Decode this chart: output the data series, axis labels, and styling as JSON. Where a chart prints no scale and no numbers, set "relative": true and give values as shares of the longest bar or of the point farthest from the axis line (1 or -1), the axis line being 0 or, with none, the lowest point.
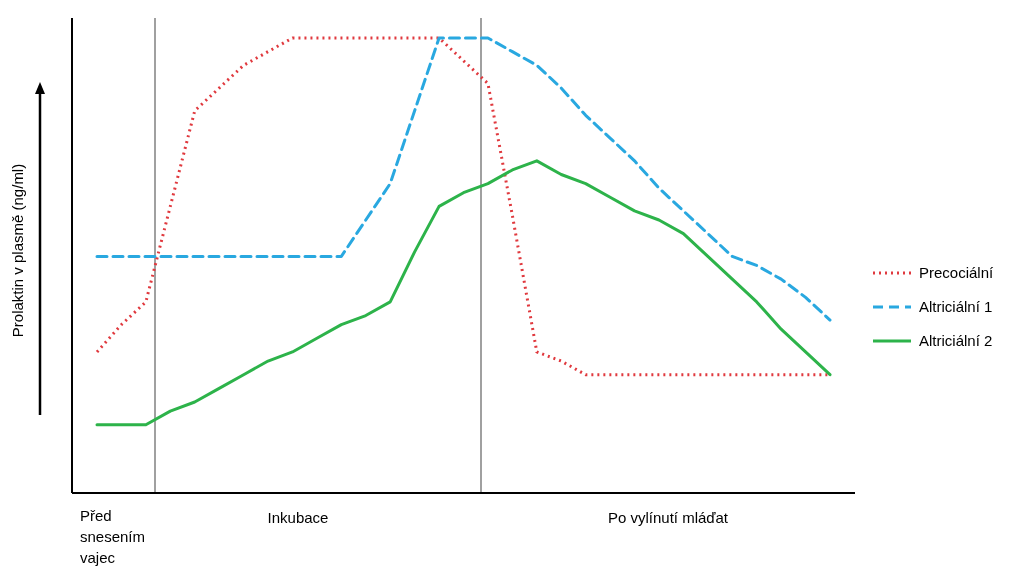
{
  "chart_data": {
    "type": "line",
    "relative": true,
    "ylabel": "Prolaktin v plasmě (ng/ml)",
    "legend": "right",
    "annotations": [
      "Před snesením vajec",
      "Inkubace",
      "Po vylínutí mláďat"
    ],
    "categories": [
      null,
      null,
      null,
      null,
      null,
      null,
      null,
      null,
      null,
      null,
      null,
      null,
      null,
      null,
      null,
      null,
      null,
      null,
      null,
      null,
      null,
      null,
      null,
      null,
      null,
      null,
      null,
      null,
      null,
      null,
      null
    ],
    "series": [
      {
        "name": "Precociální",
        "color": "#e0393e",
        "line_style": "dotted",
        "values": [
          0.31,
          0.37,
          0.42,
          0.63,
          0.84,
          0.89,
          0.94,
          0.97,
          1,
          1,
          1,
          1,
          1,
          1,
          1,
          0.95,
          0.9,
          0.61,
          0.31,
          0.29,
          0.26,
          0.26,
          0.26,
          0.26,
          0.26,
          0.26,
          0.26,
          0.26,
          0.26,
          0.26,
          0.26
        ]
      },
      {
        "name": "Altriciální 1",
        "color": "#29a8e0",
        "line_style": "dashed",
        "values": [
          0.52,
          0.52,
          0.52,
          0.52,
          0.52,
          0.52,
          0.52,
          0.52,
          0.52,
          0.52,
          0.52,
          0.6,
          0.68,
          0.84,
          1,
          1,
          1,
          0.97,
          0.94,
          0.89,
          0.83,
          0.78,
          0.73,
          0.67,
          0.62,
          0.57,
          0.52,
          0.5,
          0.47,
          0.43,
          0.38
        ]
      },
      {
        "name": "Altriciální 2",
        "color": "#2db34a",
        "line_style": "solid",
        "values": [
          0.15,
          0.15,
          0.15,
          0.18,
          0.2,
          0.23,
          0.26,
          0.29,
          0.31,
          0.34,
          0.37,
          0.39,
          0.42,
          0.53,
          0.63,
          0.66,
          0.68,
          0.71,
          0.73,
          0.7,
          0.68,
          0.65,
          0.62,
          0.6,
          0.57,
          0.52,
          0.47,
          0.42,
          0.36,
          0.31,
          0.26
        ]
      }
    ]
  }
}
